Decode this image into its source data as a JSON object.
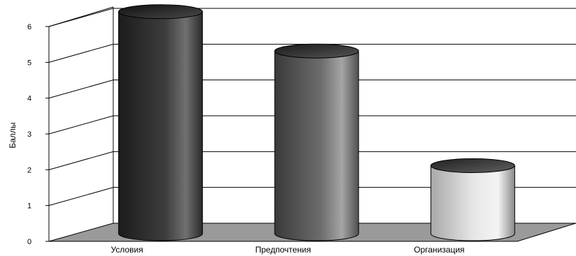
{
  "chart_data": {
    "type": "bar",
    "style": "3d-cylinder",
    "categories": [
      "Условия",
      "Предпочтения",
      "Организация"
    ],
    "values": [
      6.2,
      5.1,
      1.9
    ],
    "ylabel": "Баллы",
    "ylim": [
      0,
      6
    ],
    "yticks": [
      0,
      1,
      2,
      3,
      4,
      5,
      6
    ],
    "grid": true,
    "legend": "none",
    "colors": {
      "bar_dark": "#2e2e2e",
      "bar_mid": "#6a6a6a",
      "bar_light": "#d8d8d8",
      "floor": "#9a9a9a",
      "grid": "#000000"
    }
  }
}
